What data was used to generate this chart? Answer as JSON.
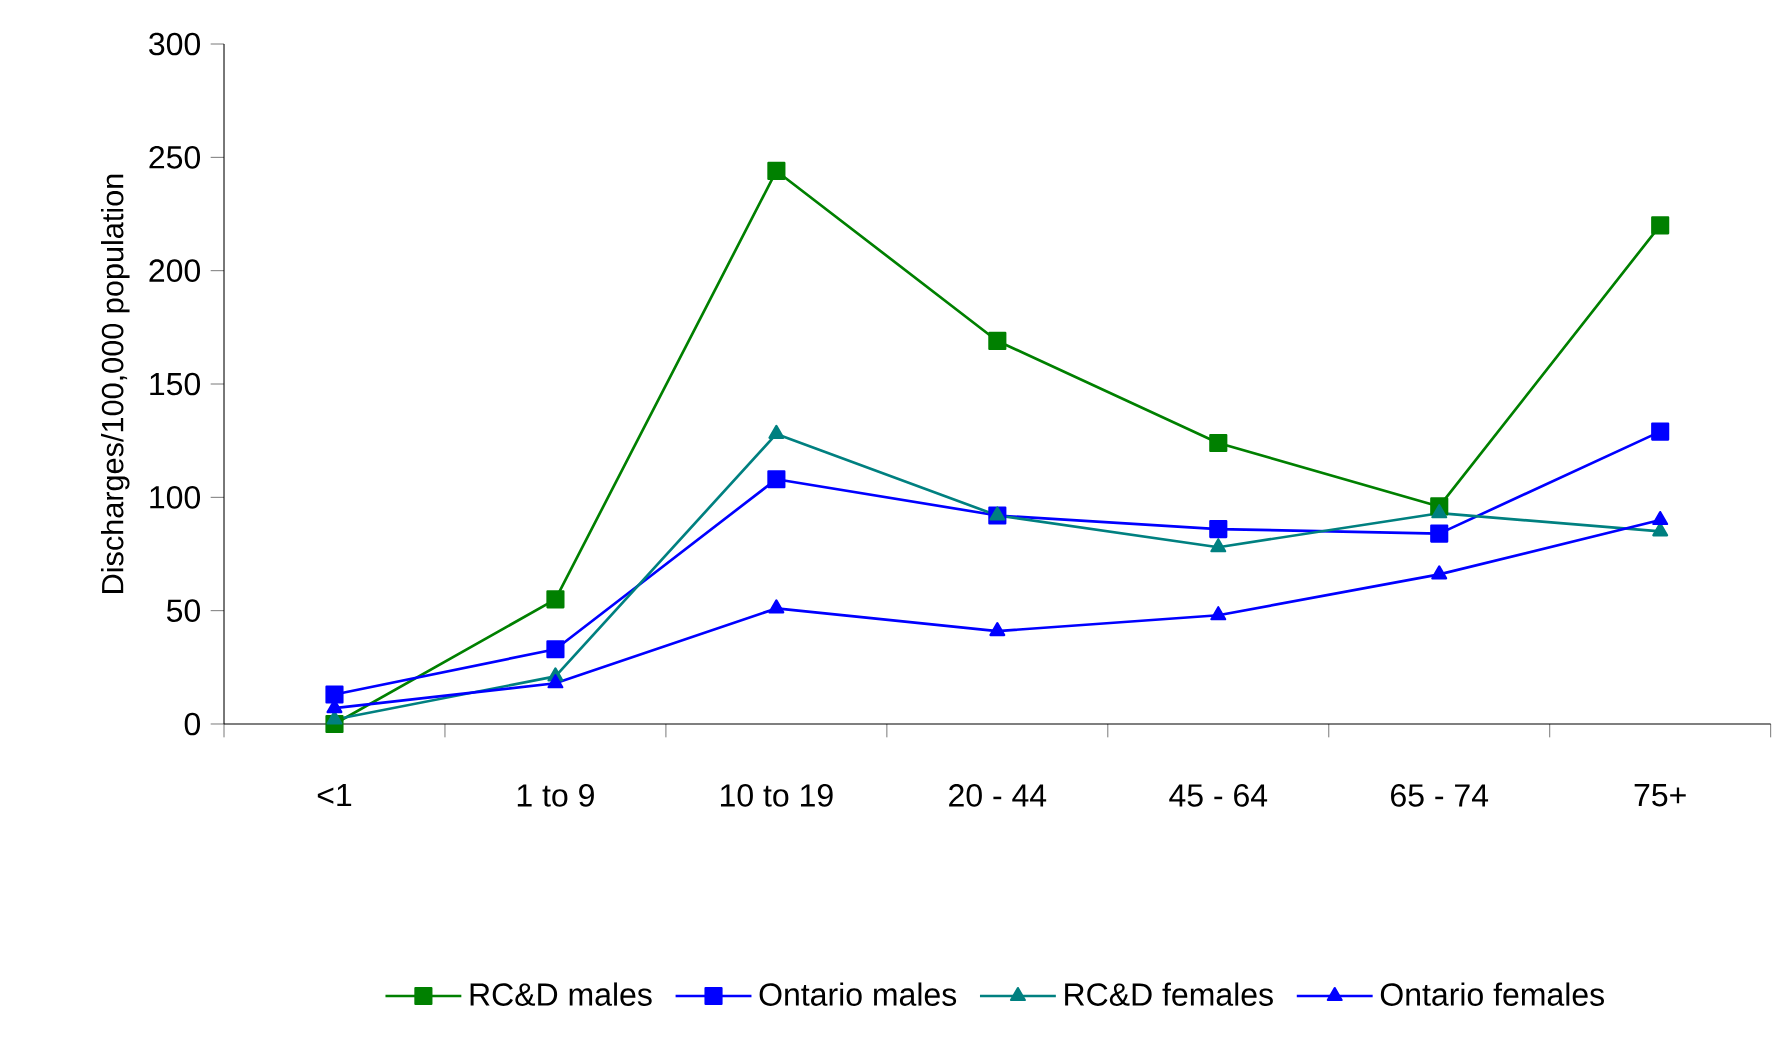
{
  "chart_data": {
    "type": "line",
    "ylabel": "Discharges/100,000 population",
    "categories": [
      "<1",
      "1 to 9",
      "10 to 19",
      "20 - 44",
      "45 - 64",
      "65 - 74",
      "75+"
    ],
    "series": [
      {
        "name": "RC&D males",
        "color": "#008000",
        "marker": "square",
        "values": [
          0,
          55,
          244,
          169,
          124,
          96,
          220
        ]
      },
      {
        "name": "Ontario males",
        "color": "#0000ff",
        "marker": "square",
        "values": [
          13,
          33,
          108,
          92,
          86,
          84,
          129
        ]
      },
      {
        "name": "RC&D females",
        "color": "#008080",
        "marker": "triangle",
        "values": [
          2,
          21,
          128,
          92,
          78,
          93,
          85
        ]
      },
      {
        "name": "Ontario females",
        "color": "#0000ff",
        "marker": "triangle",
        "values": [
          7,
          18,
          51,
          41,
          48,
          66,
          90
        ]
      }
    ],
    "ylim": [
      0,
      300
    ],
    "yticks": [
      0,
      50,
      100,
      150,
      200,
      250,
      300
    ],
    "grid": false,
    "legend": "bottom",
    "line_style": "solid"
  }
}
